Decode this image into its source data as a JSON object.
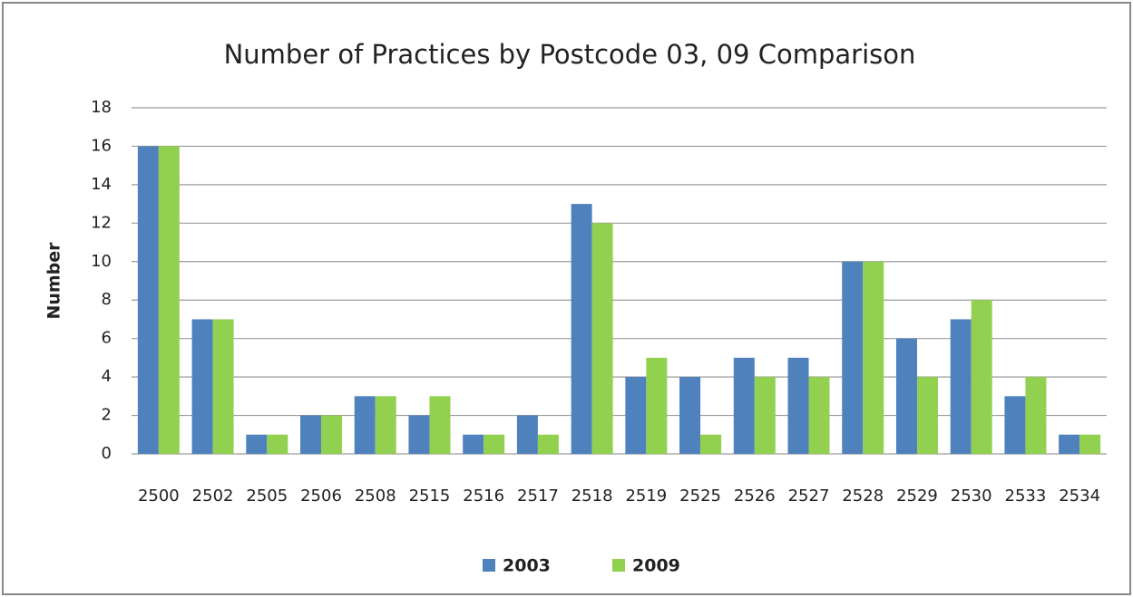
{
  "chart_data": {
    "type": "bar",
    "title": "Number of Practices by Postcode 03, 09 Comparison",
    "y_label": "Number",
    "categories": [
      "2500",
      "2502",
      "2505",
      "2506",
      "2508",
      "2515",
      "2516",
      "2517",
      "2518",
      "2519",
      "2525",
      "2526",
      "2527",
      "2528",
      "2529",
      "2530",
      "2533",
      "2534"
    ],
    "series": [
      {
        "name": "2003",
        "color": "#4f81bd",
        "values": [
          16,
          7,
          1,
          2,
          3,
          2,
          1,
          2,
          13,
          4,
          4,
          5,
          5,
          10,
          6,
          7,
          3,
          1
        ]
      },
      {
        "name": "2009",
        "color": "#92d050",
        "values": [
          16,
          7,
          1,
          2,
          3,
          3,
          1,
          1,
          12,
          5,
          1,
          4,
          4,
          10,
          4,
          8,
          4,
          1
        ]
      }
    ],
    "ylim": [
      0,
      18
    ],
    "yticks": [
      0,
      2,
      4,
      6,
      8,
      10,
      12,
      14,
      16,
      18
    ],
    "grid": true,
    "legend": "bottom"
  }
}
